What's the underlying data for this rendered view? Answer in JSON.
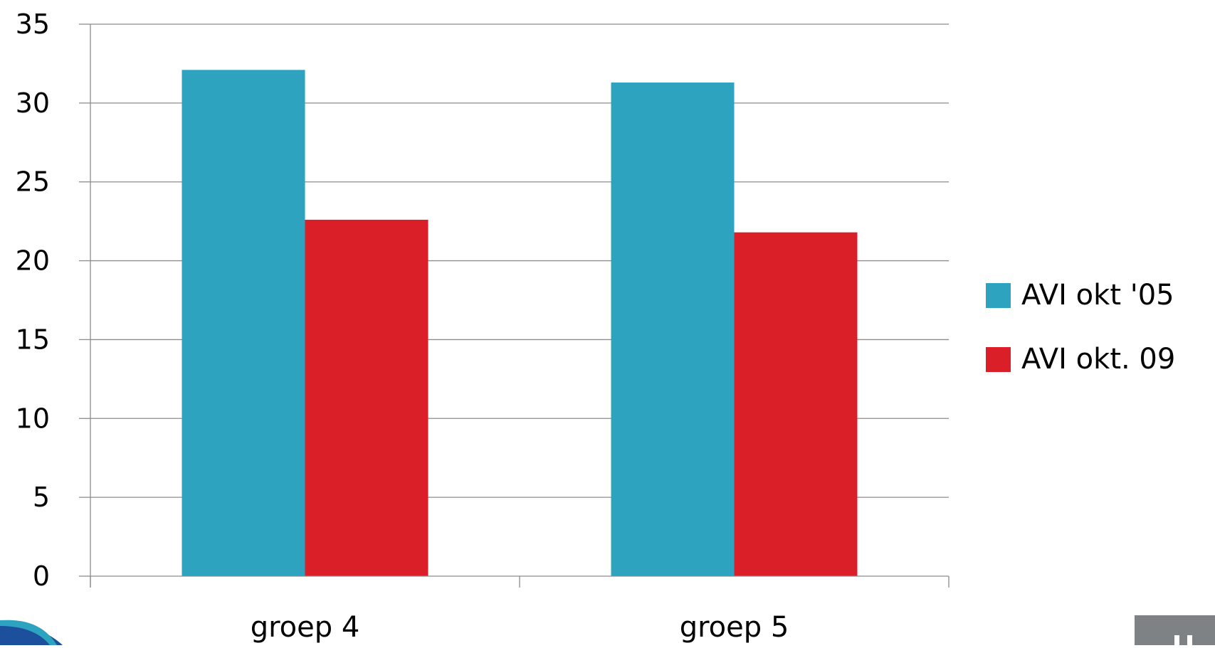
{
  "chart_data": {
    "type": "bar",
    "categories": [
      "groep 4",
      "groep 5"
    ],
    "series": [
      {
        "name": "AVI okt '05",
        "color": "#2EA3C0",
        "values": [
          32.1,
          31.3
        ]
      },
      {
        "name": "AVI okt. 09",
        "color": "#DA1F29",
        "values": [
          22.6,
          21.8
        ]
      }
    ],
    "ylim": [
      0,
      35
    ],
    "yticks": [
      "0",
      "5",
      "10",
      "15",
      "20",
      "25",
      "30",
      "35"
    ],
    "grid": true,
    "legend_position": "right"
  }
}
